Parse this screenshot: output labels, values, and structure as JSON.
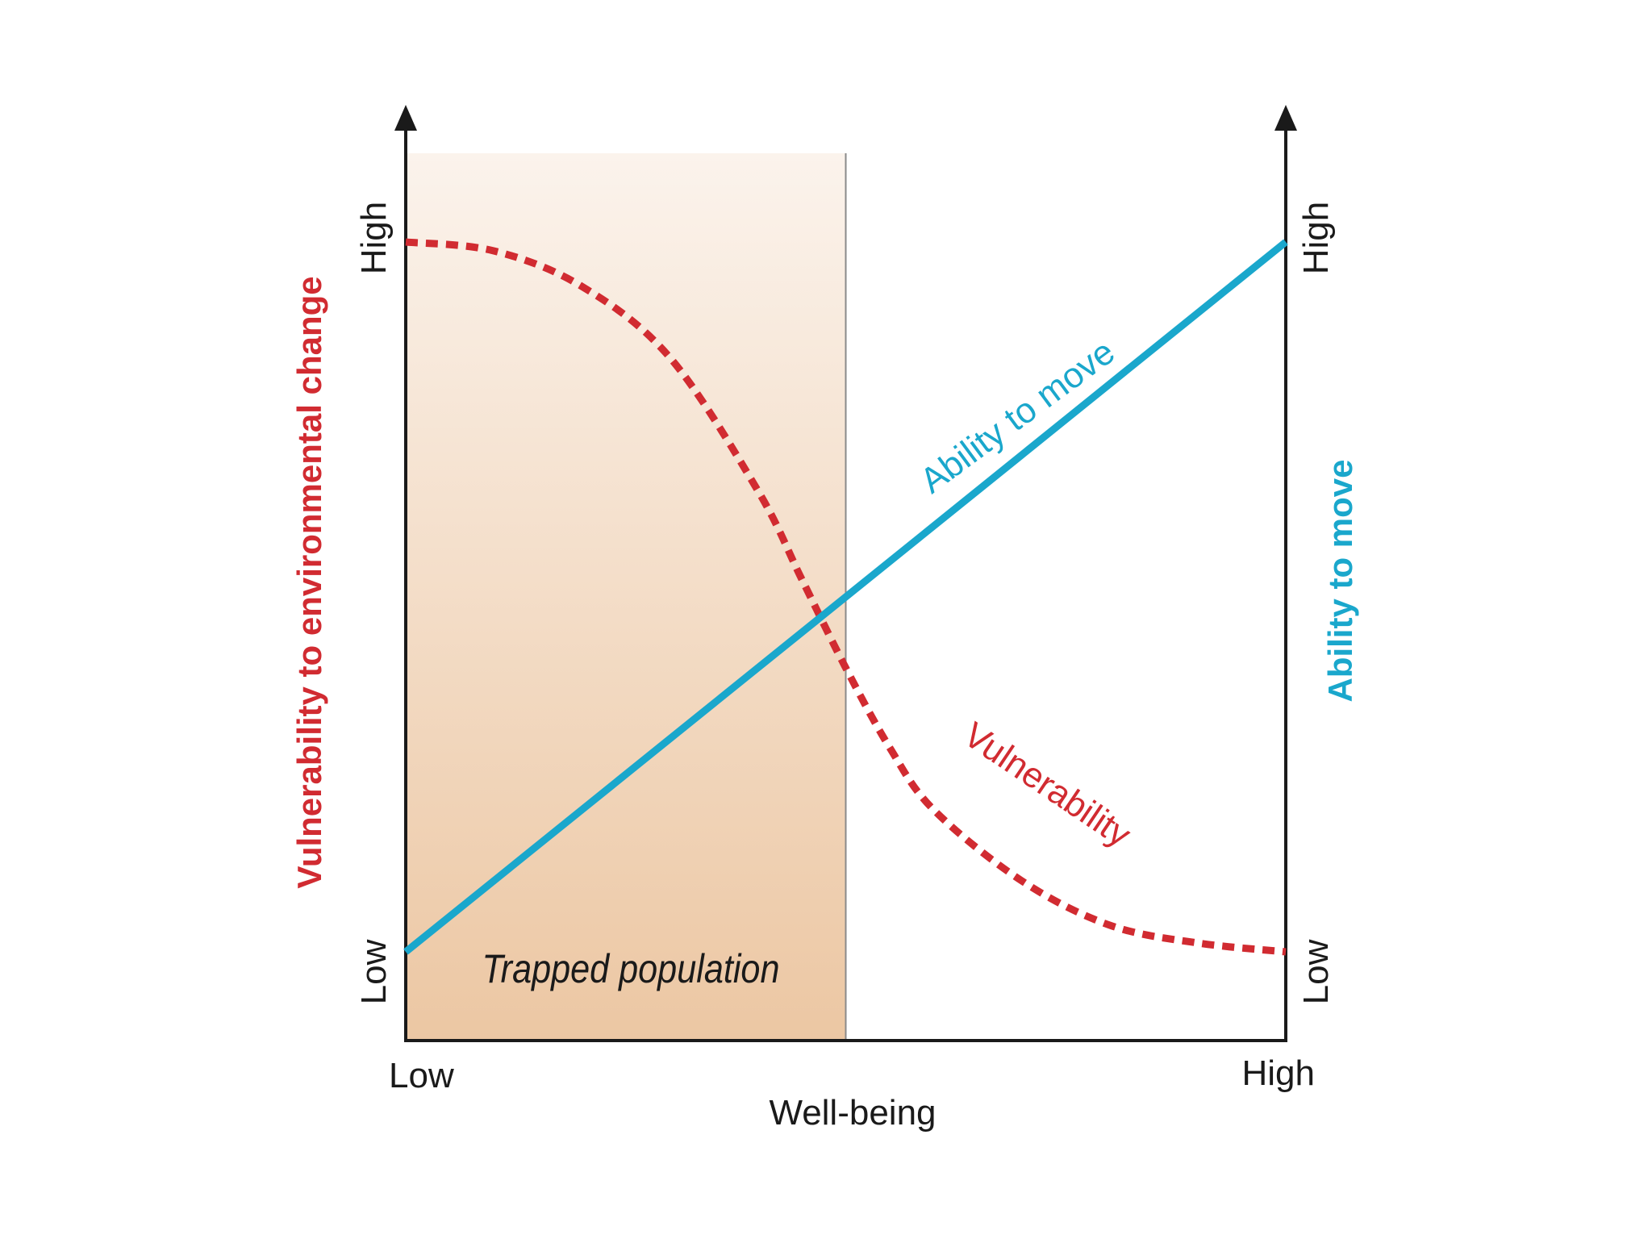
{
  "colors": {
    "vulnerability": "#d12b31",
    "ability": "#1aa7cc",
    "axis": "#1a1a1a",
    "shade_top": "#fbf3ec",
    "shade_bottom": "#ecc7a3"
  },
  "chart_data": {
    "type": "line",
    "title": "",
    "xlabel": "Well-being",
    "x_ticks": {
      "low": "Low",
      "high": "High"
    },
    "xlim": [
      0,
      1
    ],
    "y_left": {
      "label": "Vulnerability to environmental change",
      "ticks": {
        "low": "Low",
        "high": "High"
      },
      "ylim": [
        0,
        1
      ]
    },
    "y_right": {
      "label": "Ability to move",
      "ticks": {
        "low": "Low",
        "high": "High"
      },
      "ylim": [
        0,
        1
      ]
    },
    "series": [
      {
        "name": "Vulnerability",
        "axis": "left",
        "style": "dashed",
        "x": [
          0,
          0.1,
          0.2,
          0.3,
          0.4,
          0.45,
          0.5,
          0.55,
          0.6,
          0.7,
          0.8,
          0.9,
          1.0
        ],
        "y": [
          0.9,
          0.89,
          0.85,
          0.77,
          0.62,
          0.52,
          0.42,
          0.33,
          0.26,
          0.18,
          0.13,
          0.11,
          0.1
        ]
      },
      {
        "name": "Ability to move",
        "axis": "right",
        "style": "solid",
        "x": [
          0,
          1
        ],
        "y": [
          0.1,
          0.9
        ]
      }
    ],
    "regions": [
      {
        "label": "Trapped population",
        "x_start": 0,
        "x_end": 0.5
      }
    ]
  }
}
